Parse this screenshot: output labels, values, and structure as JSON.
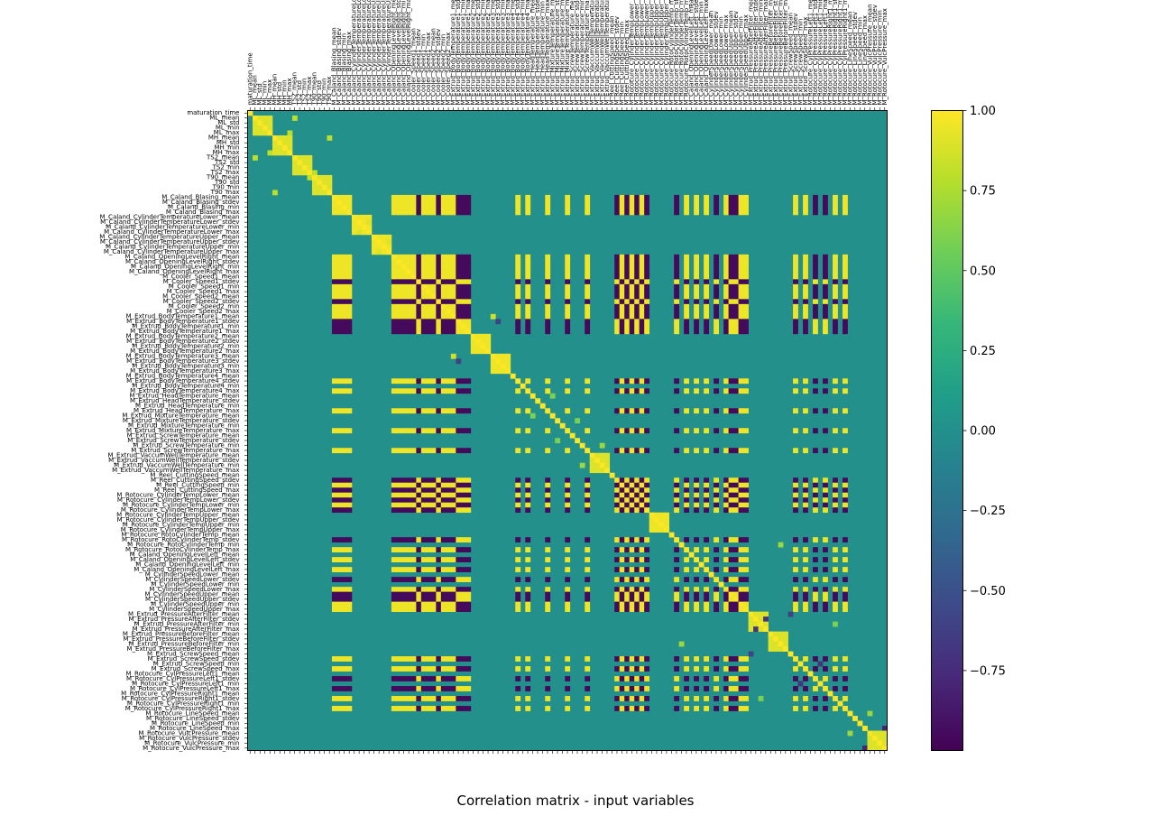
{
  "chart_data": {
    "type": "heatmap",
    "title": "Correlation matrix - input variables",
    "variables": [
      "maturation_time",
      "ML_mean",
      "ML_std",
      "ML_min",
      "ML_max",
      "MH_mean",
      "MH_std",
      "MH_min",
      "MH_max",
      "TS2_mean",
      "TS2_std",
      "TS2_min",
      "TS2_max",
      "T90_mean",
      "T90_std",
      "T90_min",
      "T90_max",
      "M_Caland_Blasing_mean",
      "M_Caland_Blasing_stdev",
      "M_Caland_Blasing_min",
      "M_Caland_Blasing_max",
      "M_Caland_CylinderTemperatureLower_mean",
      "M_Caland_CylinderTemperatureLower_stdev",
      "M_Caland_CylinderTemperatureLower_min",
      "M_Caland_CylinderTemperatureLower_max",
      "M_Caland_CylinderTemperatureUpper_mean",
      "M_Caland_CylinderTemperatureUpper_stdev",
      "M_Caland_CylinderTemperatureUpper_min",
      "M_Caland_CylinderTemperatureUpper_max",
      "M_Caland_OpeningLevelRight_mean",
      "M_Caland_OpeningLevelRight_stdev",
      "M_Caland_OpeningLevelRight_min",
      "M_Caland_OpeningLevelRight_max",
      "M_Cooler_Speed1_mean",
      "M_Cooler_Speed1_stdev",
      "M_Cooler_Speed1_min",
      "M_Cooler_Speed1_max",
      "M_Cooler_Speed2_mean",
      "M_Cooler_Speed2_stdev",
      "M_Cooler_Speed2_min",
      "M_Cooler_Speed2_max",
      "M_Extrud_BodyTemperature1_mean",
      "M_Extrud_BodyTemperature1_stdev",
      "M_Extrud_BodyTemperature1_min",
      "M_Extrud_BodyTemperature1_max",
      "M_Extrud_BodyTemperature2_mean",
      "M_Extrud_BodyTemperature2_stdev",
      "M_Extrud_BodyTemperature2_min",
      "M_Extrud_BodyTemperature2_max",
      "M_Extrud_BodyTemperature3_mean",
      "M_Extrud_BodyTemperature3_stdev",
      "M_Extrud_BodyTemperature3_min",
      "M_Extrud_BodyTemperature3_max",
      "M_Extrud_BodyTemperature4_mean",
      "M_Extrud_BodyTemperature4_stdev",
      "M_Extrud_BodyTemperature4_min",
      "M_Extrud_BodyTemperature4_max",
      "M_Extrud_HeadTemperature_mean",
      "M_Extrud_HeadTemperature_stdev",
      "M_Extrud_HeadTemperature_min",
      "M_Extrud_HeadTemperature_max",
      "M_Extrud_MixtureTemperature_mean",
      "M_Extrud_MixtureTemperature_stdev",
      "M_Extrud_MixtureTemperature_min",
      "M_Extrud_MixtureTemperature_max",
      "M_Extrud_ScrewTemperature_mean",
      "M_Extrud_ScrewTemperature_stdev",
      "M_Extrud_ScrewTemperature_min",
      "M_Extrud_ScrewTemperature_max",
      "M_Extrud_VaccumWellTemperature_mean",
      "M_Extrud_VaccumWellTemperature_stdev",
      "M_Extrud_VaccumWellTemperature_min",
      "M_Extrud_VaccumWellTemperature_max",
      "M_Reel_CuttingSpeed_mean",
      "M_Reel_CuttingSpeed_stdev",
      "M_Reel_CuttingSpeed_min",
      "M_Reel_CuttingSpeed_max",
      "M_Rotocure_CylinderTempLower_mean",
      "M_Rotocure_CylinderTempLower_stdev",
      "M_Rotocure_CylinderTempLower_min",
      "M_Rotocure_CylinderTempLower_max",
      "M_Rotocure_CylinderTempUpper_mean",
      "M_Rotocure_CylinderTempUpper_stdev",
      "M_Rotocure_CylinderTempUpper_min",
      "M_Rotocure_CylinderTempUpper_max",
      "M_Rotocure_RotoCylinderTemp_mean",
      "M_Rotocure_RotoCylinderTemp_stdev",
      "M_Rotocure_RotoCylinderTemp_min",
      "M_Rotocure_RotoCylinderTemp_max",
      "M_Caland_OpeningLevelLeft_mean",
      "M_Caland_OpeningLevelLeft_stdev",
      "M_Caland_OpeningLevelLeft_min",
      "M_Caland_OpeningLevelLeft_max",
      "M_CylinderSpeedLower_mean",
      "M_CylinderSpeedLower_stdev",
      "M_CylinderSpeedLower_min",
      "M_CylinderSpeedLower_max",
      "M_CylinderSpeedUpper_mean",
      "M_CylinderSpeedUpper_stdev",
      "M_CylinderSpeedUpper_min",
      "M_CylinderSpeedUpper_max",
      "M_Extrud_PressureAfterFilter_mean",
      "M_Extrud_PressureAfterFilter_stdev",
      "M_Extrud_PressureAfterFilter_min",
      "M_Extrud_PressureAfterFilter_max",
      "M_Extrud_PressureBeforeFilter_mean",
      "M_Extrud_PressureBeforeFilter_stdev",
      "M_Extrud_PressureBeforeFilter_min",
      "M_Extrud_PressureBeforeFilter_max",
      "M_Extrud_ScrewSpeed_mean",
      "M_Extrud_ScrewSpeed_stdev",
      "M_Extrud_ScrewSpeed_min",
      "M_Extrud_ScrewSpeed_max",
      "M_Rotocure_CylPressureLeft1_mean",
      "M_Rotocure_CylPressureLeft1_stdev",
      "M_Rotocure_CylPressureLeft1_min",
      "M_Rotocure_CylPressureLeft1_max",
      "M_Rotocure_CylPressureRight1_mean",
      "M_Rotocure_CylPressureRight1_stdev",
      "M_Rotocure_CylPressureRight1_min",
      "M_Rotocure_CylPressureRight1_max",
      "M_Rotocure_LineSpeed_mean",
      "M_Rotocure_LineSpeed_stdev",
      "M_Rotocure_LineSpeed_min",
      "M_Rotocure_LineSpeed_max",
      "M_Rotocure_VulcPressure_mean",
      "M_Rotocure_VulcPressure_stdev",
      "M_Rotocure_VulcPressure_min",
      "M_Rotocure_VulcPressure_max"
    ],
    "value_range": [
      -1.0,
      1.0
    ],
    "colormap": "viridis",
    "colormap_stops": [
      "#440154",
      "#482878",
      "#3e4989",
      "#31688e",
      "#26828e",
      "#1f9e89",
      "#35b779",
      "#6ece58",
      "#b5de2b",
      "#fde725"
    ],
    "colorbar_ticks": [
      "1.00",
      "0.75",
      "0.50",
      "0.25",
      "0.00",
      "−0.25",
      "−0.50",
      "−0.75"
    ],
    "colorbar_tick_values": [
      1.0,
      0.75,
      0.5,
      0.25,
      0.0,
      -0.25,
      -0.5,
      -0.75
    ],
    "blocks": [
      {
        "vars": [
          1,
          2,
          3,
          4
        ],
        "value": 0.9
      },
      {
        "vars": [
          5,
          6,
          7,
          8
        ],
        "value": 0.9
      },
      {
        "vars": [
          9,
          10,
          11,
          12
        ],
        "value": 0.9
      },
      {
        "vars": [
          13,
          14,
          15,
          16
        ],
        "value": 0.9
      },
      {
        "vars": [
          21,
          22,
          23,
          24
        ],
        "value": 0.95
      },
      {
        "vars": [
          25,
          26,
          27,
          28
        ],
        "value": 0.95
      },
      {
        "vars": [
          45,
          46,
          47,
          48
        ],
        "value": 0.95
      },
      {
        "vars": [
          49,
          50,
          51,
          52
        ],
        "value": 0.95
      },
      {
        "vars": [
          81,
          82,
          83,
          84
        ],
        "value": 0.95
      },
      {
        "vars": [
          101,
          102,
          103,
          104
        ],
        "value": 0.9
      },
      {
        "vars": [
          105,
          106,
          107,
          108
        ],
        "value": 0.9
      },
      {
        "vars": [
          69,
          70,
          71,
          72
        ],
        "value": 0.9
      },
      {
        "vars": [
          125,
          126,
          127,
          128
        ],
        "value": 0.9
      }
    ],
    "pos_group": [
      17,
      18,
      19,
      20,
      29,
      30,
      31,
      32,
      33,
      35,
      36,
      37,
      39,
      40,
      41,
      54,
      56,
      60,
      64,
      68,
      75,
      77,
      79,
      88,
      90,
      92,
      96,
      99,
      100,
      110,
      112,
      118,
      120
    ],
    "neg_group": [
      34,
      38,
      42,
      43,
      44,
      74,
      76,
      78,
      80,
      86,
      94,
      97,
      98,
      114,
      116
    ],
    "group_value": 0.95,
    "sparse_links": [
      [
        4,
        8,
        0.8
      ],
      [
        1,
        9,
        0.8
      ],
      [
        5,
        16,
        0.8
      ],
      [
        12,
        13,
        0.8
      ],
      [
        41,
        49,
        0.85
      ],
      [
        42,
        50,
        -0.6
      ],
      [
        22,
        24,
        0.9
      ],
      [
        26,
        28,
        0.9
      ],
      [
        67,
        71,
        0.7
      ],
      [
        87,
        107,
        0.7
      ],
      [
        124,
        128,
        -0.8
      ],
      [
        121,
        125,
        0.7
      ],
      [
        111,
        115,
        -0.7
      ],
      [
        62,
        66,
        0.6
      ],
      [
        57,
        61,
        0.6
      ],
      [
        101,
        109,
        -0.6
      ],
      [
        103,
        118,
        0.6
      ],
      [
        102,
        104,
        -0.7
      ]
    ]
  }
}
